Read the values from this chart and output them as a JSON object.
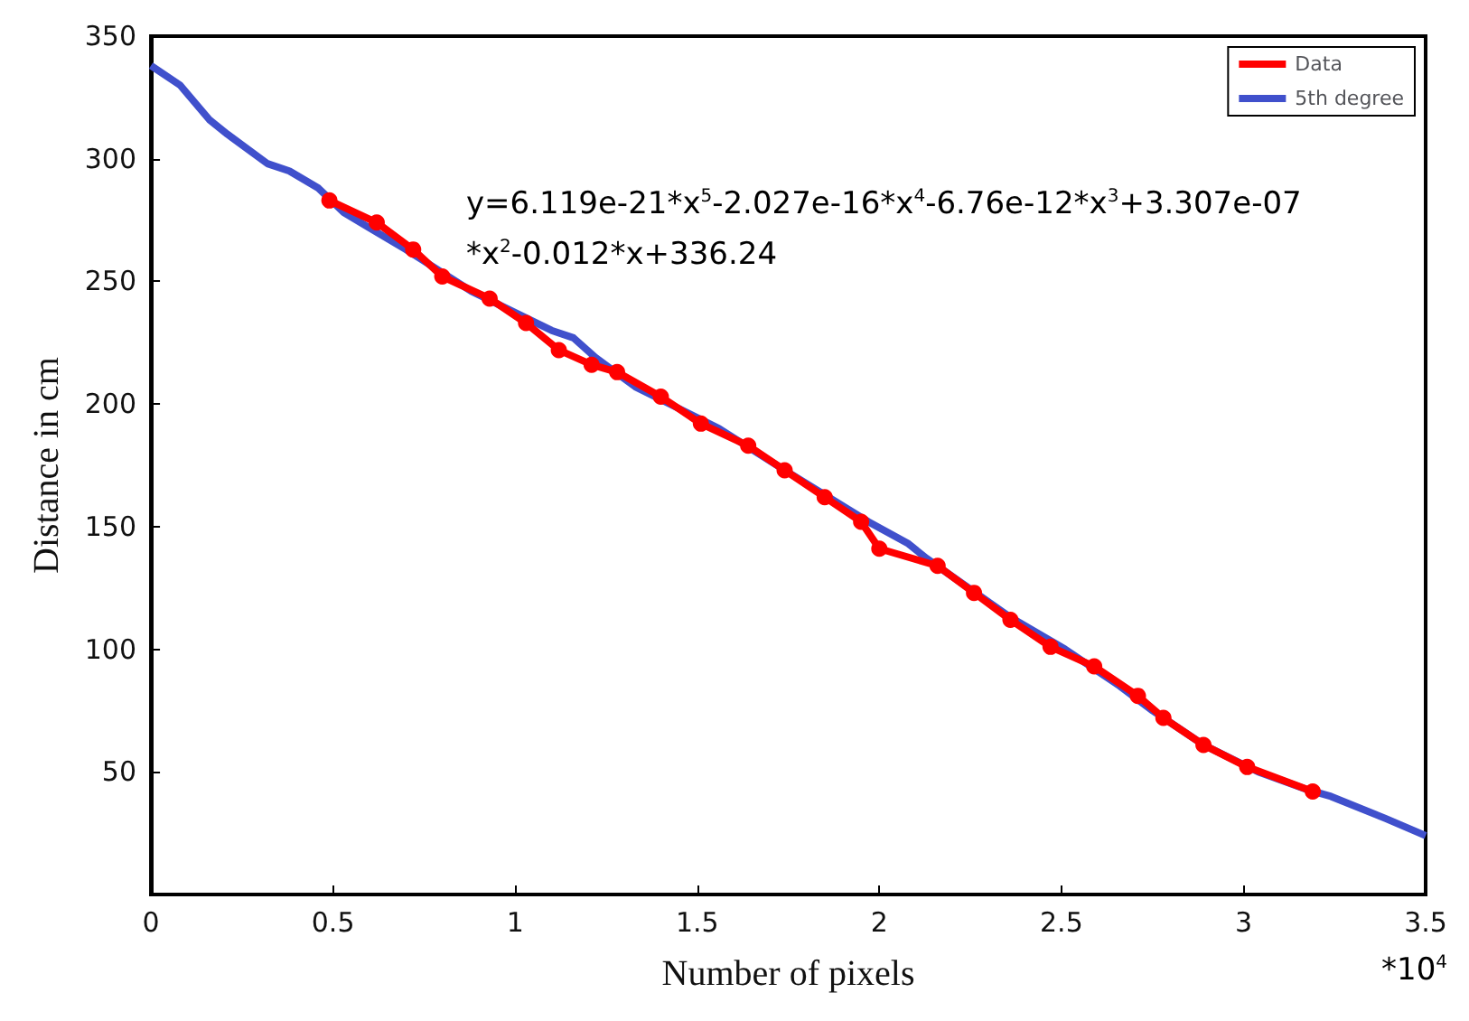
{
  "chart_data": {
    "type": "line",
    "xlabel": "Number of pixels",
    "ylabel": "Distance in cm",
    "annotations": [
      "y=6.119e-21*x$^{5}$-2.027e-16*x$^{4}$-6.76e-12*x$^{3}$+3.307e-07",
      "*x$^{2}$-0.012*x+336.24",
      "*10$^{4}$"
    ],
    "xlim": [
      0,
      3.5
    ],
    "xticks": [
      0,
      0.5,
      1,
      1.5,
      2,
      2.5,
      3,
      3.5
    ],
    "ylim": [
      0,
      350
    ],
    "yticks": [
      50,
      100,
      150,
      200,
      250,
      300,
      350
    ],
    "grid": false,
    "legend": "top right",
    "series": [
      {
        "name": "Data",
        "color": "#ff0000",
        "marker": "circle",
        "x": [
          0.49,
          0.62,
          0.72,
          0.8,
          0.93,
          1.03,
          1.12,
          1.21,
          1.28,
          1.4,
          1.51,
          1.64,
          1.74,
          1.85,
          1.95,
          2.0,
          2.16,
          2.26,
          2.36,
          2.47,
          2.59,
          2.71,
          2.78,
          2.89,
          3.01,
          3.19
        ],
        "values": [
          283,
          274,
          263,
          252,
          243,
          233,
          222,
          216,
          213,
          203,
          192,
          183,
          173,
          162,
          152,
          141,
          134,
          123,
          112,
          101,
          93,
          81,
          72,
          61,
          52,
          42
        ]
      },
      {
        "name": "5th degree",
        "color": "#4050cc",
        "marker": "none",
        "x": [
          0,
          0.08,
          0.16,
          0.21,
          0.32,
          0.38,
          0.46,
          0.53,
          0.7,
          0.88,
          1.1,
          1.16,
          1.22,
          1.33,
          1.56,
          1.74,
          1.97,
          2.08,
          2.13,
          2.36,
          2.51,
          2.66,
          2.75,
          2.89,
          3.04,
          3.17,
          3.24,
          3.39,
          3.5
        ],
        "values": [
          338,
          330,
          316,
          310,
          298,
          295,
          288,
          278,
          263,
          246,
          230,
          227,
          219,
          207,
          190,
          173,
          152,
          143,
          137,
          113,
          100,
          85,
          75,
          61,
          50,
          43,
          40,
          31,
          24
        ]
      }
    ]
  }
}
